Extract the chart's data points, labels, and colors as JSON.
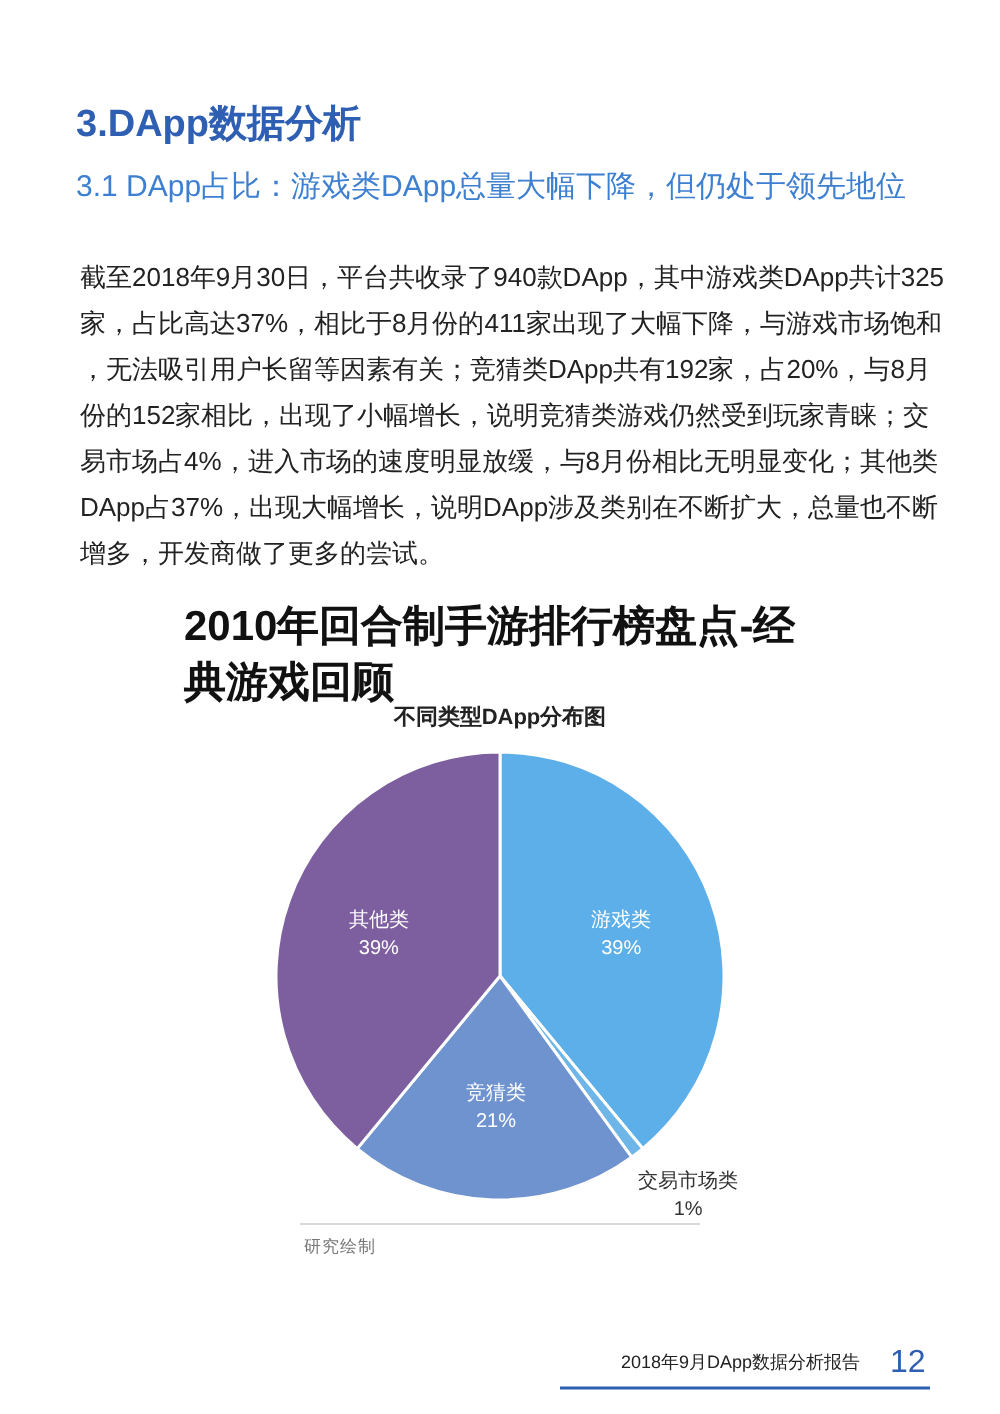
{
  "chart_data": {
    "type": "pie",
    "title": "3.DApp数据分析",
    "subtitle": "3.1 DApp占比：游戏类DApp总量大幅下降，但仍处于领先地位",
    "xlabel": "不同类型DApp分布图",
    "categories": [
      "游戏类",
      "交易市场类",
      "竞猜类",
      "其他类"
    ],
    "values": [
      39,
      1,
      21,
      39
    ],
    "value_labels": [
      "39%",
      "1%",
      "21%",
      "39%"
    ],
    "colors": [
      "#5cafe9",
      "#6fb6e8",
      "#6f93cf",
      "#7d5f9f"
    ],
    "annotations": [
      "截至2018年9月30日，平台共收录了940款DApp，其中游戏类DApp共计325家，占比高达37%，相比于8月份的411家出现了大幅下降，与游戏市场饱和，无法吸引用户长留等因素有关；竞猜类DApp共有192家，占20%，与8月份的152家相比，出现了小幅增长，说明竞猜类游戏仍然受到玩家青睐；交易市场占4%，进入市场的速度明显放缓，与8月份相比无明显变化；其他类DApp占37%，出现大幅增长，说明DApp涉及类别在不断扩大，总量也不断增多，开发商做了更多的尝试。",
      "2010年回合制手游排行榜盘点-经典游戏回顾",
      "研究绘制",
      "2018年9月DApp数据分析报告",
      "12"
    ]
  }
}
